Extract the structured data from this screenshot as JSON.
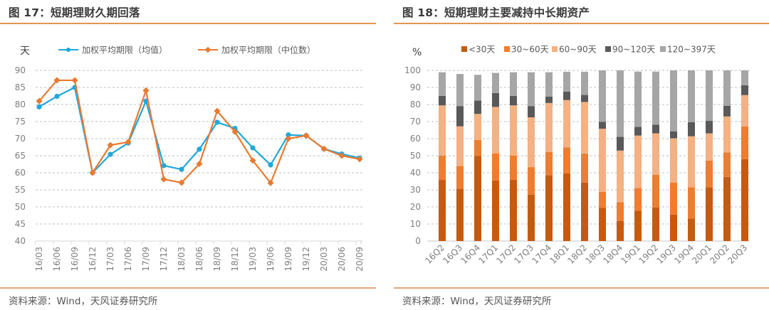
{
  "left": {
    "title": "图 17：短期理财久期回落",
    "source": "资料来源：Wind，天风证券研究所"
  },
  "right": {
    "title": "图 18：短期理财主要减持中长期资产",
    "source": "资料来源：Wind，天风证券研究所"
  },
  "chart_data": [
    {
      "type": "line",
      "title": "图 17：短期理财久期回落",
      "ylabel": "天",
      "xlabel": "",
      "ylim": [
        40,
        90
      ],
      "yticks": [
        40,
        45,
        50,
        55,
        60,
        65,
        70,
        75,
        80,
        85,
        90
      ],
      "grid": true,
      "legend": "top",
      "categories": [
        "16/03",
        "16/06",
        "16/09",
        "16/12",
        "17/03",
        "17/06",
        "17/09",
        "17/12",
        "18/03",
        "18/06",
        "18/09",
        "18/12",
        "19/03",
        "19/06",
        "19/09",
        "19/12",
        "20/03",
        "20/06",
        "20/09"
      ],
      "series": [
        {
          "name": "加权平均期限（均值）",
          "color": "#1fa8dc",
          "marker": "circle",
          "values": [
            79.3,
            82.4,
            85.0,
            60.0,
            65.4,
            68.7,
            81.0,
            62.1,
            61.0,
            66.9,
            74.8,
            73.0,
            67.3,
            62.3,
            71.1,
            70.9,
            67.0,
            65.5,
            64.3
          ]
        },
        {
          "name": "加权平均期限（中位数）",
          "color": "#e97a32",
          "marker": "diamond",
          "values": [
            81.0,
            87.1,
            87.1,
            60.0,
            68.1,
            69.0,
            84.1,
            58.1,
            57.1,
            62.6,
            78.1,
            72.0,
            63.6,
            57.0,
            70.0,
            70.9,
            67.0,
            65.0,
            64.0
          ]
        }
      ]
    },
    {
      "type": "bar",
      "stacked": true,
      "title": "图 18：短期理财主要减持中长期资产",
      "ylabel": "%",
      "xlabel": "",
      "ylim": [
        0,
        100
      ],
      "yticks": [
        0,
        10,
        20,
        30,
        40,
        50,
        60,
        70,
        80,
        90,
        100
      ],
      "grid": true,
      "legend": "top",
      "categories": [
        "16Q2",
        "16Q3",
        "16Q4",
        "17Q1",
        "17Q2",
        "17Q3",
        "17Q4",
        "18Q1",
        "18Q2",
        "18Q3",
        "18Q4",
        "19Q1",
        "19Q2",
        "19Q3",
        "19Q4",
        "20Q1",
        "20Q2",
        "20Q3"
      ],
      "series": [
        {
          "name": "<30天",
          "color": "#c55a11",
          "values": [
            35.8,
            30.6,
            49.8,
            35.5,
            35.8,
            27.2,
            38.5,
            39.6,
            34.2,
            19.4,
            11.8,
            17.8,
            19.6,
            15.5,
            13.1,
            31.5,
            37.6,
            48.0
          ]
        },
        {
          "name": "30~60天",
          "color": "#ed7d31",
          "values": [
            14.3,
            13.4,
            9.4,
            15.8,
            14.3,
            16.1,
            13.6,
            15.2,
            17.0,
            9.4,
            11.0,
            13.2,
            19.3,
            18.8,
            18.4,
            15.7,
            14.4,
            19.2
          ]
        },
        {
          "name": "60~90天",
          "color": "#f4b183",
          "values": [
            29.4,
            23.2,
            15.3,
            27.3,
            29.4,
            29.2,
            28.8,
            27.8,
            30.3,
            37.0,
            30.2,
            30.8,
            24.2,
            25.9,
            29.9,
            15.9,
            21.0,
            18.3
          ]
        },
        {
          "name": "90~120天",
          "color": "#595959",
          "values": [
            5.6,
            11.9,
            7.8,
            8.1,
            5.6,
            6.6,
            3.7,
            5.0,
            4.1,
            4.0,
            8.1,
            5.1,
            5.1,
            4.1,
            8.3,
            7.3,
            6.3,
            5.8
          ]
        },
        {
          "name": "120~397天",
          "color": "#a6a6a6",
          "values": [
            13.8,
            18.8,
            15.1,
            11.8,
            13.8,
            19.8,
            14.3,
            11.6,
            13.6,
            30.2,
            38.9,
            32.4,
            31.1,
            35.7,
            30.3,
            29.6,
            20.7,
            8.7
          ]
        }
      ]
    }
  ]
}
